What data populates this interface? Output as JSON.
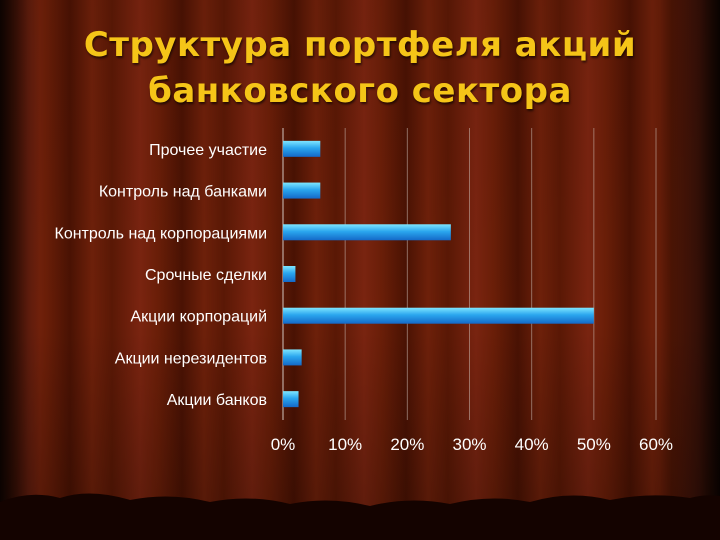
{
  "slide": {
    "title_line1": "Структура портфеля акций",
    "title_line2": "банковского сектора"
  },
  "colors": {
    "title": "#f5c518",
    "bar_top": "#7fe6ff",
    "bar_mid": "#2aa6ee",
    "bar_bottom": "#1468c8",
    "text": "#ffffff",
    "grid": "#c8b8b0"
  },
  "chart_data": {
    "type": "bar",
    "orientation": "horizontal",
    "categories": [
      "Прочее участие",
      "Контроль над банками",
      "Контроль над корпорациями",
      "Срочные сделки",
      "Акции корпораций",
      "Акции нерезидентов",
      "Акции банков"
    ],
    "values": [
      6,
      6,
      27,
      2,
      50,
      3,
      2.5
    ],
    "value_unit": "%",
    "xlim": [
      0,
      60
    ],
    "x_ticks": [
      0,
      10,
      20,
      30,
      40,
      50,
      60
    ],
    "x_tick_labels": [
      "0%",
      "10%",
      "20%",
      "30%",
      "40%",
      "50%",
      "60%"
    ],
    "grid": true,
    "legend": "none",
    "title": "Структура портфеля акций банковского сектора",
    "xlabel": "",
    "ylabel": ""
  }
}
